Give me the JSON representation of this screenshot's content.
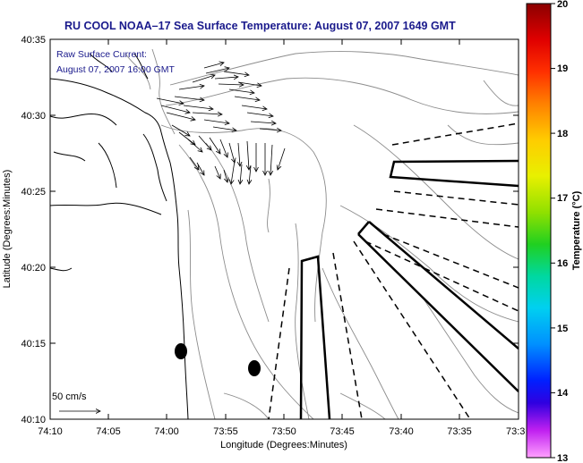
{
  "title": "RU COOL  NOAA–17  Sea Surface Temperature:  August 07, 2007 1649 GMT",
  "info": {
    "line1": "Raw Surface Current:",
    "line2": "August 07, 2007 16:00 GMT"
  },
  "scale": {
    "label": "50 cm/s"
  },
  "axes": {
    "xlabel": "Longitude (Degrees:Minutes)",
    "ylabel": "Latitude (Degrees:Minutes)",
    "xticks": [
      "74:10",
      "74:05",
      "74:00",
      "73:55",
      "73:50",
      "73:45",
      "73:40",
      "73:35",
      "73:3"
    ],
    "yticks": [
      "40:35",
      "40:30",
      "40:25",
      "40:20",
      "40:15",
      "40:10"
    ]
  },
  "colorbar": {
    "label": "Temperature (°C)",
    "min": 13,
    "max": 20,
    "ticks": [
      "20",
      "19",
      "18",
      "17",
      "16",
      "15",
      "14",
      "13"
    ]
  }
}
